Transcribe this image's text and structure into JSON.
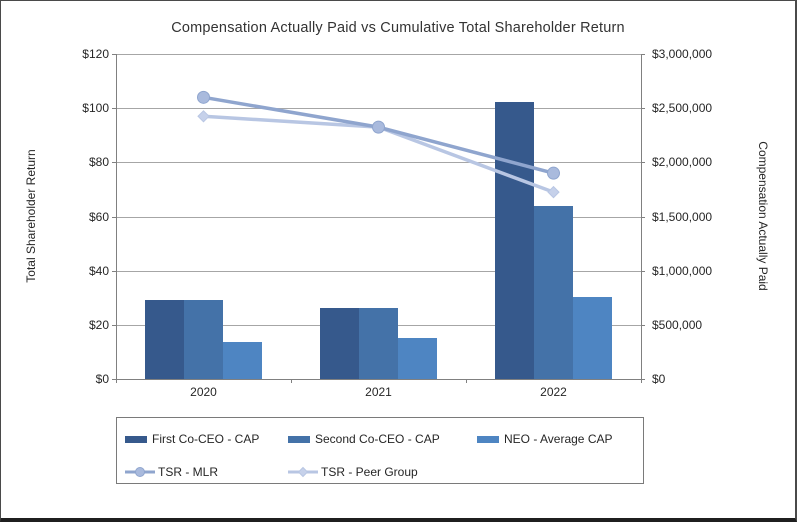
{
  "chart_data": {
    "type": "combo-bar-line",
    "title": "Compensation Actually Paid vs Cumulative Total Shareholder Return",
    "categories": [
      "2020",
      "2021",
      "2022"
    ],
    "bar_series": [
      {
        "name": "First Co-CEO - CAP",
        "axis": "right",
        "color": "#36598c",
        "values": [
          730000,
          660000,
          2560000
        ]
      },
      {
        "name": "Second Co-CEO - CAP",
        "axis": "right",
        "color": "#4472a8",
        "values": [
          730000,
          660000,
          1600000
        ]
      },
      {
        "name": "NEO - Average CAP",
        "axis": "right",
        "color": "#4e85c2",
        "values": [
          340000,
          380000,
          760000
        ]
      }
    ],
    "line_series": [
      {
        "name": "TSR - MLR",
        "axis": "left",
        "marker": "circle",
        "color": "#8fa5ce",
        "marker_fill": "#a9badd",
        "values": [
          104,
          93,
          76
        ]
      },
      {
        "name": "TSR - Peer Group",
        "axis": "left",
        "marker": "diamond",
        "color": "#b8c6e3",
        "marker_fill": "#c6d1ea",
        "values": [
          97,
          93,
          69
        ]
      }
    ],
    "left_axis": {
      "title": "Total Shareholder Return",
      "min": 0,
      "max": 120,
      "tick_step": 20,
      "tick_labels": [
        "$0",
        "$20",
        "$40",
        "$60",
        "$80",
        "$100",
        "$120"
      ]
    },
    "right_axis": {
      "title": "Compensation Actually Paid",
      "min": 0,
      "max": 3000000,
      "tick_step": 500000,
      "tick_labels": [
        "$0",
        "$500,000",
        "$1,000,000",
        "$1,500,000",
        "$2,000,000",
        "$2,500,000",
        "$3,000,000"
      ]
    },
    "grid": "horizontal",
    "legend_position": "bottom",
    "colors": {
      "gridline": "#a6a6a6",
      "axis_line": "#808080",
      "legend_border": "#7a7a7a",
      "text": "#262626",
      "frame_border": "#1f1f1f",
      "background": "#ffffff"
    }
  }
}
